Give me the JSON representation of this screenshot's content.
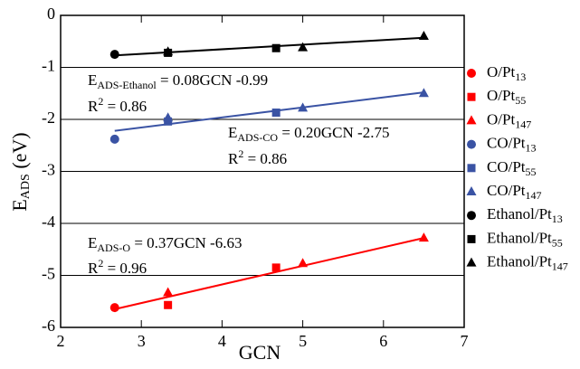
{
  "chart_data": {
    "type": "scatter",
    "x_label": "GCN",
    "y_label": {
      "main": "E",
      "sub": "ADS",
      "rest": " (eV)"
    },
    "xlim": [
      2,
      7
    ],
    "xticks": [
      2,
      3,
      4,
      5,
      6,
      7
    ],
    "ylim": [
      -6,
      0
    ],
    "yticks": [
      -6,
      -5,
      -4,
      -3,
      -2,
      -1,
      0
    ],
    "grid": true,
    "legend": "right",
    "series": [
      {
        "name": "O/Pt",
        "sub": "13",
        "color": "#ff0000",
        "marker": "circle",
        "x": [
          2.67
        ],
        "values": [
          -5.62
        ]
      },
      {
        "name": "O/Pt",
        "sub": "55",
        "color": "#ff0000",
        "marker": "square",
        "x": [
          3.33,
          4.67
        ],
        "values": [
          -5.57,
          -4.85
        ]
      },
      {
        "name": "O/Pt",
        "sub": "147",
        "color": "#ff0000",
        "marker": "triangle",
        "x": [
          3.33,
          5.0,
          6.5
        ],
        "values": [
          -5.33,
          -4.77,
          -4.28
        ]
      },
      {
        "name": "CO/Pt",
        "sub": "13",
        "color": "#3a53a4",
        "marker": "circle",
        "x": [
          2.67
        ],
        "values": [
          -2.38
        ]
      },
      {
        "name": "CO/Pt",
        "sub": "55",
        "color": "#3a53a4",
        "marker": "square",
        "x": [
          3.33,
          4.67
        ],
        "values": [
          -2.04,
          -1.87
        ]
      },
      {
        "name": "CO/Pt",
        "sub": "147",
        "color": "#3a53a4",
        "marker": "triangle",
        "x": [
          3.33,
          5.0,
          6.5
        ],
        "values": [
          -1.97,
          -1.78,
          -1.5
        ]
      },
      {
        "name": "Ethanol/Pt",
        "sub": "13",
        "color": "#000000",
        "marker": "circle",
        "x": [
          2.67
        ],
        "values": [
          -0.75
        ]
      },
      {
        "name": "Ethanol/Pt",
        "sub": "55",
        "color": "#000000",
        "marker": "square",
        "x": [
          3.33,
          4.67
        ],
        "values": [
          -0.72,
          -0.63
        ]
      },
      {
        "name": "Ethanol/Pt",
        "sub": "147",
        "color": "#000000",
        "marker": "triangle",
        "x": [
          3.33,
          5.0,
          6.5
        ],
        "values": [
          -0.7,
          -0.62,
          -0.4
        ]
      }
    ],
    "fits": [
      {
        "color": "#000000",
        "x": [
          2.67,
          6.5
        ],
        "values": [
          -0.77,
          -0.43
        ],
        "equation": {
          "main": "E",
          "sub": "ADS-Ethanol",
          "rest": " = 0.08GCN -0.99"
        },
        "r2": {
          "main": "R",
          "sup": "2",
          "rest": " = 0.86"
        }
      },
      {
        "color": "#3a53a4",
        "x": [
          2.67,
          6.5
        ],
        "values": [
          -2.22,
          -1.48
        ],
        "equation": {
          "main": "E",
          "sub": "ADS-CO",
          "rest": " = 0.20GCN -2.75"
        },
        "r2": {
          "main": "R",
          "sup": "2",
          "rest": " = 0.86"
        }
      },
      {
        "color": "#ff0000",
        "x": [
          2.67,
          6.5
        ],
        "values": [
          -5.65,
          -4.28
        ],
        "equation": {
          "main": "E",
          "sub": "ADS-O",
          "rest": " = 0.37GCN -6.63"
        },
        "r2": {
          "main": "R",
          "sup": "2",
          "rest": " = 0.96"
        }
      }
    ]
  }
}
